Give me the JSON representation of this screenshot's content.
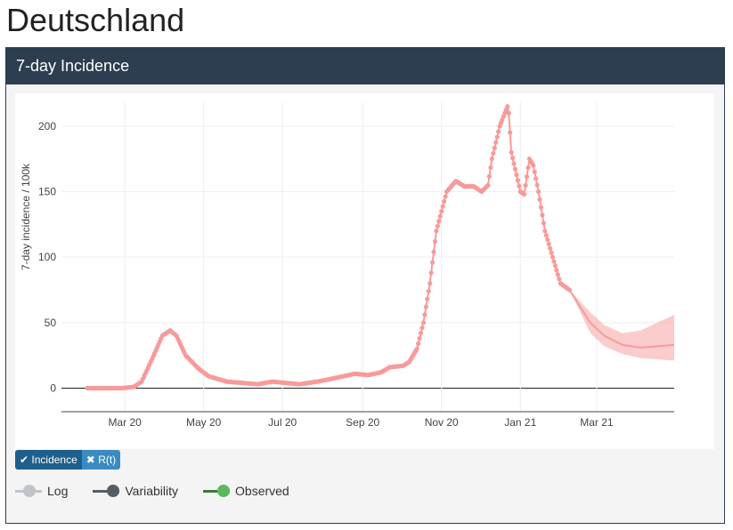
{
  "title": "Deutschland",
  "panel": {
    "header": "7-day Incidence"
  },
  "toggles": [
    {
      "label": "Incidence",
      "icon": "check-icon",
      "glyph": "✔"
    },
    {
      "label": "R(t)",
      "icon": "x-icon",
      "glyph": "✖"
    }
  ],
  "legend": [
    {
      "label": "Log",
      "color": "#c0c4c8"
    },
    {
      "label": "Variability",
      "color": "#555d66"
    },
    {
      "label": "Observed",
      "color": "#5cb85c",
      "line": "#3a7a3a"
    }
  ],
  "chart_data": {
    "type": "line",
    "ylabel": "7-day incidence / 100k",
    "ylim": [
      -18,
      225
    ],
    "yticks": [
      0,
      50,
      100,
      150,
      200
    ],
    "xlim": [
      "2020-01-12",
      "2021-04-30"
    ],
    "xticks": [
      {
        "date": "2020-03-01",
        "label": "Mar 20"
      },
      {
        "date": "2020-05-01",
        "label": "May 20"
      },
      {
        "date": "2020-07-01",
        "label": "Jul 20"
      },
      {
        "date": "2020-09-01",
        "label": "Sep 20"
      },
      {
        "date": "2020-11-01",
        "label": "Nov 20"
      },
      {
        "date": "2021-01-01",
        "label": "Jan 21"
      },
      {
        "date": "2021-03-01",
        "label": "Mar 21"
      }
    ],
    "color": "#f89a9a",
    "observed": [
      [
        "2020-02-01",
        0
      ],
      [
        "2020-02-28",
        0
      ],
      [
        "2020-03-08",
        1
      ],
      [
        "2020-03-14",
        5
      ],
      [
        "2020-03-22",
        22
      ],
      [
        "2020-03-30",
        40
      ],
      [
        "2020-04-05",
        44
      ],
      [
        "2020-04-10",
        40
      ],
      [
        "2020-04-17",
        25
      ],
      [
        "2020-04-27",
        15
      ],
      [
        "2020-05-05",
        9
      ],
      [
        "2020-05-19",
        5
      ],
      [
        "2020-06-12",
        3
      ],
      [
        "2020-06-23",
        5
      ],
      [
        "2020-07-14",
        3
      ],
      [
        "2020-07-28",
        5
      ],
      [
        "2020-08-12",
        8
      ],
      [
        "2020-08-26",
        11
      ],
      [
        "2020-09-05",
        10
      ],
      [
        "2020-09-15",
        12
      ],
      [
        "2020-09-22",
        16
      ],
      [
        "2020-10-02",
        17
      ],
      [
        "2020-10-07",
        20
      ],
      [
        "2020-10-13",
        30
      ],
      [
        "2020-10-18",
        50
      ],
      [
        "2020-10-23",
        80
      ],
      [
        "2020-10-28",
        120
      ],
      [
        "2020-11-05",
        150
      ],
      [
        "2020-11-12",
        158
      ],
      [
        "2020-11-19",
        154
      ],
      [
        "2020-11-26",
        154
      ],
      [
        "2020-12-02",
        150
      ],
      [
        "2020-12-07",
        155
      ],
      [
        "2020-12-10",
        175
      ],
      [
        "2020-12-16",
        200
      ],
      [
        "2020-12-22",
        215
      ],
      [
        "2020-12-23",
        210
      ],
      [
        "2020-12-25",
        180
      ],
      [
        "2021-01-01",
        150
      ],
      [
        "2021-01-04",
        148
      ],
      [
        "2021-01-08",
        175
      ],
      [
        "2021-01-11",
        170
      ],
      [
        "2021-01-15",
        150
      ],
      [
        "2021-01-20",
        120
      ],
      [
        "2021-01-26",
        100
      ],
      [
        "2021-02-01",
        80
      ],
      [
        "2021-02-08",
        75
      ]
    ],
    "forecast": [
      [
        "2021-02-08",
        75,
        75,
        75
      ],
      [
        "2021-02-24",
        50,
        58,
        42
      ],
      [
        "2021-03-07",
        40,
        48,
        32
      ],
      [
        "2021-03-21",
        33,
        42,
        26
      ],
      [
        "2021-04-04",
        31,
        44,
        23
      ],
      [
        "2021-04-30",
        33,
        56,
        21
      ]
    ]
  }
}
